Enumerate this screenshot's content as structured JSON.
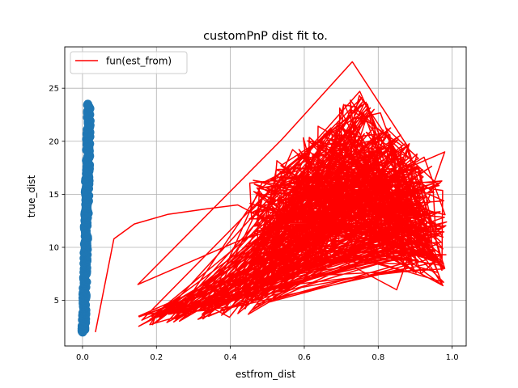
{
  "chart_data": {
    "type": "line",
    "title": "customPnP dist fit to.",
    "xlabel": "estfrom_dist",
    "ylabel": "true_dist",
    "xlim": [
      -0.048,
      1.038
    ],
    "ylim": [
      0.7,
      28.9
    ],
    "xticks": [
      0.0,
      0.2,
      0.4,
      0.6,
      0.8,
      1.0
    ],
    "xtick_labels": [
      "0.0",
      "0.2",
      "0.4",
      "0.6",
      "0.8",
      "1.0"
    ],
    "yticks": [
      5,
      10,
      15,
      20,
      25
    ],
    "ytick_labels": [
      "5",
      "10",
      "15",
      "20",
      "25"
    ],
    "grid": true,
    "legend_position": "top-left",
    "series": [
      {
        "name": "fun(est_from)",
        "kind": "line",
        "color": "#ff0000",
        "line_points_count": 700,
        "line_random_seed": 7,
        "x": [
          0.035,
          0.085,
          0.14,
          0.23,
          0.33,
          0.42,
          0.85,
          0.98,
          0.15,
          0.54,
          0.73,
          0.88,
          0.98
        ],
        "y": [
          2.0,
          10.8,
          12.2,
          13.1,
          13.6,
          14.0,
          6.0,
          19.0,
          6.5,
          20.2,
          27.5,
          19.5,
          8.0
        ]
      },
      {
        "name": "",
        "kind": "scatter",
        "color": "#1f77b4",
        "scatter_points_count": 260,
        "x_range": [
          0.0,
          0.02
        ],
        "y_range": [
          2.0,
          23.5
        ]
      }
    ]
  }
}
